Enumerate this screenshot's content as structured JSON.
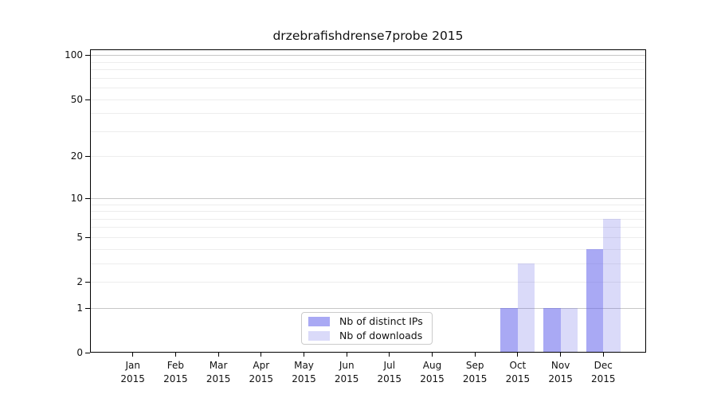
{
  "title": "drzebrafishdrense7probe 2015",
  "chart_data": {
    "type": "bar",
    "title": "drzebrafishdrense7probe 2015",
    "categories": [
      "Jan",
      "Feb",
      "Mar",
      "Apr",
      "May",
      "Jun",
      "Jul",
      "Aug",
      "Sep",
      "Oct",
      "Nov",
      "Dec"
    ],
    "year_label": "2015",
    "series": [
      {
        "name": "Nb of distinct IPs",
        "color": "rgba(98,98,235,0.55)",
        "values": [
          0,
          0,
          0,
          0,
          0,
          0,
          0,
          0,
          0,
          1,
          1,
          4
        ]
      },
      {
        "name": "Nb of downloads",
        "color": "rgba(80,80,225,0.21)",
        "values": [
          0,
          0,
          0,
          0,
          0,
          0,
          0,
          0,
          0,
          3,
          1,
          7
        ]
      }
    ],
    "yticks": [
      0,
      1,
      2,
      5,
      10,
      20,
      50,
      100
    ],
    "minor_gridline_values": [
      2,
      3,
      4,
      5,
      6,
      7,
      8,
      9,
      20,
      30,
      40,
      50,
      60,
      70,
      80,
      90
    ],
    "major_gridline_values": [
      1,
      10,
      100
    ],
    "scale": "log10(1+y)",
    "ylim": [
      0,
      100
    ],
    "grid": "horizontal",
    "legend_position": "bottom-center",
    "colors": {
      "minor_gridline": "#ededed",
      "major_gridline": "#c7c7c7",
      "axis": "#000000",
      "text": "#111111",
      "background": "#ffffff"
    }
  }
}
